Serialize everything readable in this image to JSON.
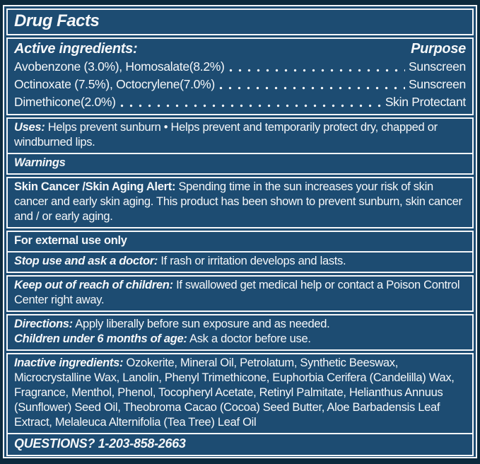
{
  "colors": {
    "background": "#1d4c72",
    "frame": "#0d2a3d",
    "rule_and_text": "#f5f7f9"
  },
  "title": "Drug Facts",
  "active": {
    "heading": "Active ingredients:",
    "purpose_heading": "Purpose",
    "rows": [
      {
        "name": "Avobenzone (3.0%), Homosalate(8.2%)",
        "purpose": "Sunscreen"
      },
      {
        "name": "Octinoxate (7.5%), Octocrylene(7.0%)",
        "purpose": "Sunscreen"
      },
      {
        "name": "Dimethicone(2.0%)",
        "purpose": "Skin Protectant"
      }
    ]
  },
  "uses": {
    "label": "Uses:",
    "text": "Helps prevent sunburn • Helps prevent and temporarily protect dry, chapped or windburned lips."
  },
  "warnings": {
    "heading": "Warnings"
  },
  "skin_alert": {
    "label": "Skin Cancer /Skin Aging Alert:",
    "text": "Spending time in the sun increases your risk of skin cancer and early skin aging. This product has been shown to prevent sunburn, skin cancer and / or early aging."
  },
  "external": {
    "text": "For external use only"
  },
  "stop_use": {
    "label": "Stop use and ask a doctor:",
    "text": "If rash or irritation develops and lasts."
  },
  "keep_out": {
    "label": "Keep out of reach of children:",
    "text": "If swallowed get medical help or contact a Poison Control Center right away."
  },
  "directions": {
    "label": "Directions:",
    "text": "Apply liberally before sun exposure and as needed."
  },
  "children": {
    "label": "Children under 6 months of age:",
    "text": "Ask a doctor before use."
  },
  "inactive": {
    "label": "Inactive ingredients:",
    "text": "Ozokerite, Mineral Oil, Petrolatum, Synthetic Beeswax, Microcrystalline Wax, Lanolin, Phenyl Trimethicone, Euphorbia Cerifera (Candelilla) Wax, Fragrance, Menthol, Phenol, Tocopheryl Acetate, Retinyl Palmitate, Helianthus Annuus (Sunflower) Seed Oil, Theobroma Cacao (Cocoa) Seed Butter, Aloe Barbadensis Leaf Extract, Melaleuca Alternifolia (Tea Tree) Leaf Oil"
  },
  "questions": {
    "text": "QUESTIONS? 1-203-858-2663"
  }
}
